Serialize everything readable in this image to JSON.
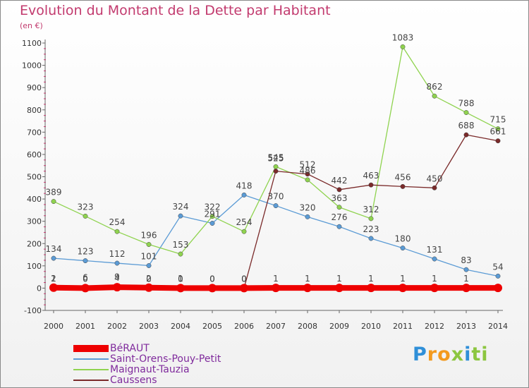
{
  "header": {
    "title": "Evolution du Montant de la Dette par Habitant",
    "unit": "(en €)"
  },
  "chart_data": {
    "type": "line",
    "title": "Evolution du Montant de la Dette par Habitant",
    "subtitle": "(en €)",
    "xlabel": "",
    "ylabel": "",
    "x": [
      "2000",
      "2001",
      "2002",
      "2003",
      "2004",
      "2005",
      "2006",
      "2007",
      "2008",
      "2009",
      "2010",
      "2011",
      "2012",
      "2013",
      "2014"
    ],
    "ylim": [
      -100,
      1100
    ],
    "yticks": [
      -100,
      0,
      100,
      200,
      300,
      400,
      500,
      600,
      700,
      800,
      900,
      1000,
      1100
    ],
    "grid": false,
    "legend_position": "bottom-left",
    "series": [
      {
        "name": "BéRAUT",
        "color": "#ee0000",
        "values": [
          2,
          0,
          4,
          2,
          0,
          0,
          0,
          1,
          1,
          1,
          1,
          1,
          1,
          1,
          1
        ],
        "labels": [
          "2",
          "0",
          "4",
          "2",
          "0",
          "0",
          "0",
          "1",
          "1",
          "1",
          "1",
          "1",
          "1",
          "1",
          ""
        ]
      },
      {
        "name": "Saint-Orens-Pouy-Petit",
        "color": "#5b9bd5",
        "values": [
          134,
          123,
          112,
          101,
          324,
          291,
          418,
          370,
          320,
          276,
          223,
          180,
          131,
          83,
          54
        ]
      },
      {
        "name": "Maignaut-Tauzia",
        "color": "#8fd34f",
        "values": [
          389,
          323,
          254,
          196,
          153,
          322,
          254,
          545,
          486,
          363,
          312,
          1083,
          862,
          788,
          715
        ]
      },
      {
        "name": "Caussens",
        "color": "#7a2a2a",
        "values": [
          1,
          6,
          9,
          0,
          1,
          0,
          0,
          525,
          512,
          442,
          463,
          456,
          450,
          688,
          661
        ],
        "labels": [
          "1",
          "6",
          "9",
          "0",
          "1",
          "0",
          "0",
          "525",
          "512",
          "442",
          "463",
          "456",
          "450",
          "688",
          "661"
        ]
      }
    ]
  },
  "legend": [
    {
      "name": "BéRAUT",
      "color": "#ee0000"
    },
    {
      "name": "Saint-Orens-Pouy-Petit",
      "color": "#5b9bd5"
    },
    {
      "name": "Maignaut-Tauzia",
      "color": "#8fd34f"
    },
    {
      "name": "Caussens",
      "color": "#7a2a2a"
    }
  ],
  "logo": {
    "text": "Proxiti",
    "letters": [
      "P",
      "r",
      "o",
      "x",
      "i",
      "t",
      "i"
    ],
    "colors": [
      "#2f8fd8",
      "#f39a1e",
      "#f39a1e",
      "#8cc63f",
      "#2f8fd8",
      "#8cc63f",
      "#8cc63f"
    ]
  }
}
